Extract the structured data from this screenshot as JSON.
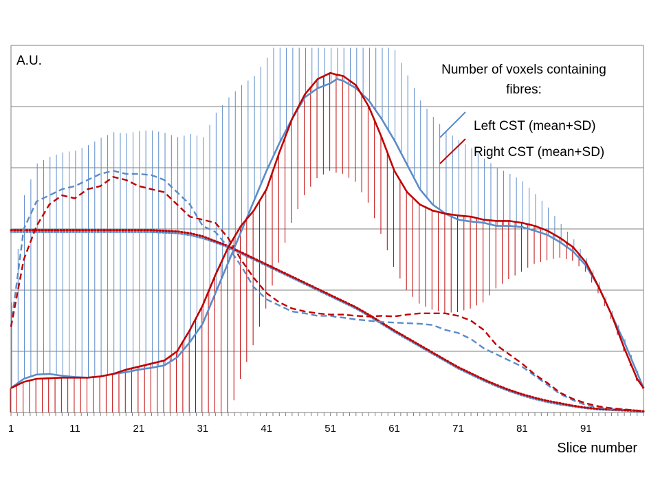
{
  "chart_data": {
    "type": "line",
    "ylabel": "A.U.",
    "xlabel": "Slice number",
    "legend": {
      "title": "Number of voxels containing fibres:",
      "title_lines": [
        "Number of voxels containing",
        "fibres:"
      ],
      "entries": [
        "Left CST (mean+SD)",
        "Right CST (mean+SD)"
      ],
      "placement": "top-right"
    },
    "x_ticks": [
      1,
      11,
      21,
      31,
      41,
      51,
      61,
      71,
      81,
      91
    ],
    "xlim": [
      1,
      100
    ],
    "ylim": [
      0,
      6
    ],
    "grid": true,
    "colors": {
      "left": "#5B8BC9",
      "right": "#C00000",
      "grid": "#7F7F7F"
    },
    "slices": [
      1,
      3,
      5,
      7,
      9,
      11,
      13,
      15,
      17,
      19,
      21,
      23,
      25,
      27,
      29,
      31,
      33,
      35,
      37,
      39,
      41,
      43,
      45,
      47,
      49,
      51,
      52,
      53,
      55,
      57,
      59,
      61,
      63,
      65,
      67,
      69,
      71,
      73,
      75,
      77,
      79,
      81,
      83,
      85,
      87,
      89,
      91,
      93,
      95,
      97,
      99,
      100
    ],
    "series": [
      {
        "name": "Left CST mean",
        "style": "solid",
        "color": "left",
        "values": [
          0.4,
          0.55,
          0.62,
          0.63,
          0.6,
          0.58,
          0.57,
          0.59,
          0.63,
          0.66,
          0.7,
          0.73,
          0.77,
          0.9,
          1.15,
          1.45,
          1.95,
          2.45,
          2.95,
          3.45,
          3.95,
          4.4,
          4.8,
          5.15,
          5.3,
          5.38,
          5.45,
          5.42,
          5.3,
          5.1,
          4.8,
          4.45,
          4.05,
          3.65,
          3.4,
          3.25,
          3.15,
          3.12,
          3.1,
          3.05,
          3.05,
          3.03,
          2.97,
          2.9,
          2.78,
          2.63,
          2.4,
          2.05,
          1.6,
          1.15,
          0.65,
          0.4
        ]
      },
      {
        "name": "Right CST mean",
        "style": "solid",
        "color": "right",
        "values": [
          0.4,
          0.5,
          0.55,
          0.56,
          0.57,
          0.57,
          0.57,
          0.59,
          0.63,
          0.7,
          0.75,
          0.8,
          0.85,
          1.0,
          1.35,
          1.75,
          2.25,
          2.7,
          3.05,
          3.3,
          3.65,
          4.25,
          4.8,
          5.2,
          5.45,
          5.55,
          5.52,
          5.5,
          5.35,
          5.0,
          4.5,
          3.95,
          3.6,
          3.4,
          3.3,
          3.25,
          3.22,
          3.2,
          3.15,
          3.13,
          3.13,
          3.1,
          3.05,
          2.97,
          2.85,
          2.7,
          2.45,
          2.05,
          1.6,
          1.05,
          0.55,
          0.4
        ]
      },
      {
        "name": "Left CST SD",
        "style": "dashed",
        "color": "left",
        "values": [
          1.4,
          3.0,
          3.45,
          3.55,
          3.65,
          3.7,
          3.8,
          3.9,
          3.95,
          3.9,
          3.9,
          3.88,
          3.8,
          3.6,
          3.4,
          3.05,
          2.95,
          2.7,
          2.4,
          2.05,
          1.85,
          1.75,
          1.65,
          1.62,
          1.58,
          1.58,
          1.56,
          1.55,
          1.52,
          1.5,
          1.48,
          1.47,
          1.46,
          1.45,
          1.43,
          1.35,
          1.3,
          1.2,
          1.05,
          0.95,
          0.85,
          0.75,
          0.6,
          0.45,
          0.3,
          0.2,
          0.12,
          0.08,
          0.06,
          0.05,
          0.03,
          0.02
        ]
      },
      {
        "name": "Right CST SD",
        "style": "dashed",
        "color": "right",
        "values": [
          1.4,
          2.5,
          3.05,
          3.4,
          3.55,
          3.5,
          3.65,
          3.7,
          3.85,
          3.8,
          3.7,
          3.65,
          3.6,
          3.4,
          3.2,
          3.15,
          3.1,
          2.85,
          2.5,
          2.2,
          1.95,
          1.8,
          1.7,
          1.65,
          1.62,
          1.6,
          1.6,
          1.6,
          1.58,
          1.57,
          1.58,
          1.57,
          1.6,
          1.62,
          1.62,
          1.62,
          1.58,
          1.5,
          1.35,
          1.1,
          0.95,
          0.8,
          0.62,
          0.48,
          0.32,
          0.22,
          0.15,
          0.1,
          0.07,
          0.05,
          0.03,
          0.02
        ]
      },
      {
        "name": "Left CST trend",
        "style": "dotted",
        "color": "left",
        "values": [
          2.95,
          2.95,
          2.95,
          2.95,
          2.95,
          2.95,
          2.95,
          2.95,
          2.95,
          2.95,
          2.95,
          2.95,
          2.94,
          2.93,
          2.9,
          2.85,
          2.78,
          2.7,
          2.6,
          2.5,
          2.4,
          2.3,
          2.2,
          2.1,
          2.0,
          1.9,
          1.85,
          1.8,
          1.7,
          1.58,
          1.45,
          1.32,
          1.2,
          1.08,
          0.96,
          0.84,
          0.72,
          0.62,
          0.52,
          0.43,
          0.35,
          0.28,
          0.22,
          0.17,
          0.13,
          0.1,
          0.07,
          0.05,
          0.04,
          0.03,
          0.02,
          0.01
        ]
      },
      {
        "name": "Right CST trend",
        "style": "dotted",
        "color": "right",
        "values": [
          2.98,
          2.98,
          2.98,
          2.98,
          2.98,
          2.98,
          2.98,
          2.98,
          2.98,
          2.98,
          2.98,
          2.98,
          2.97,
          2.96,
          2.93,
          2.88,
          2.8,
          2.72,
          2.62,
          2.52,
          2.42,
          2.32,
          2.22,
          2.12,
          2.02,
          1.92,
          1.87,
          1.82,
          1.72,
          1.6,
          1.47,
          1.34,
          1.22,
          1.1,
          0.98,
          0.86,
          0.74,
          0.64,
          0.54,
          0.45,
          0.37,
          0.3,
          0.24,
          0.19,
          0.15,
          0.11,
          0.08,
          0.06,
          0.05,
          0.04,
          0.03,
          0.02
        ]
      }
    ]
  }
}
